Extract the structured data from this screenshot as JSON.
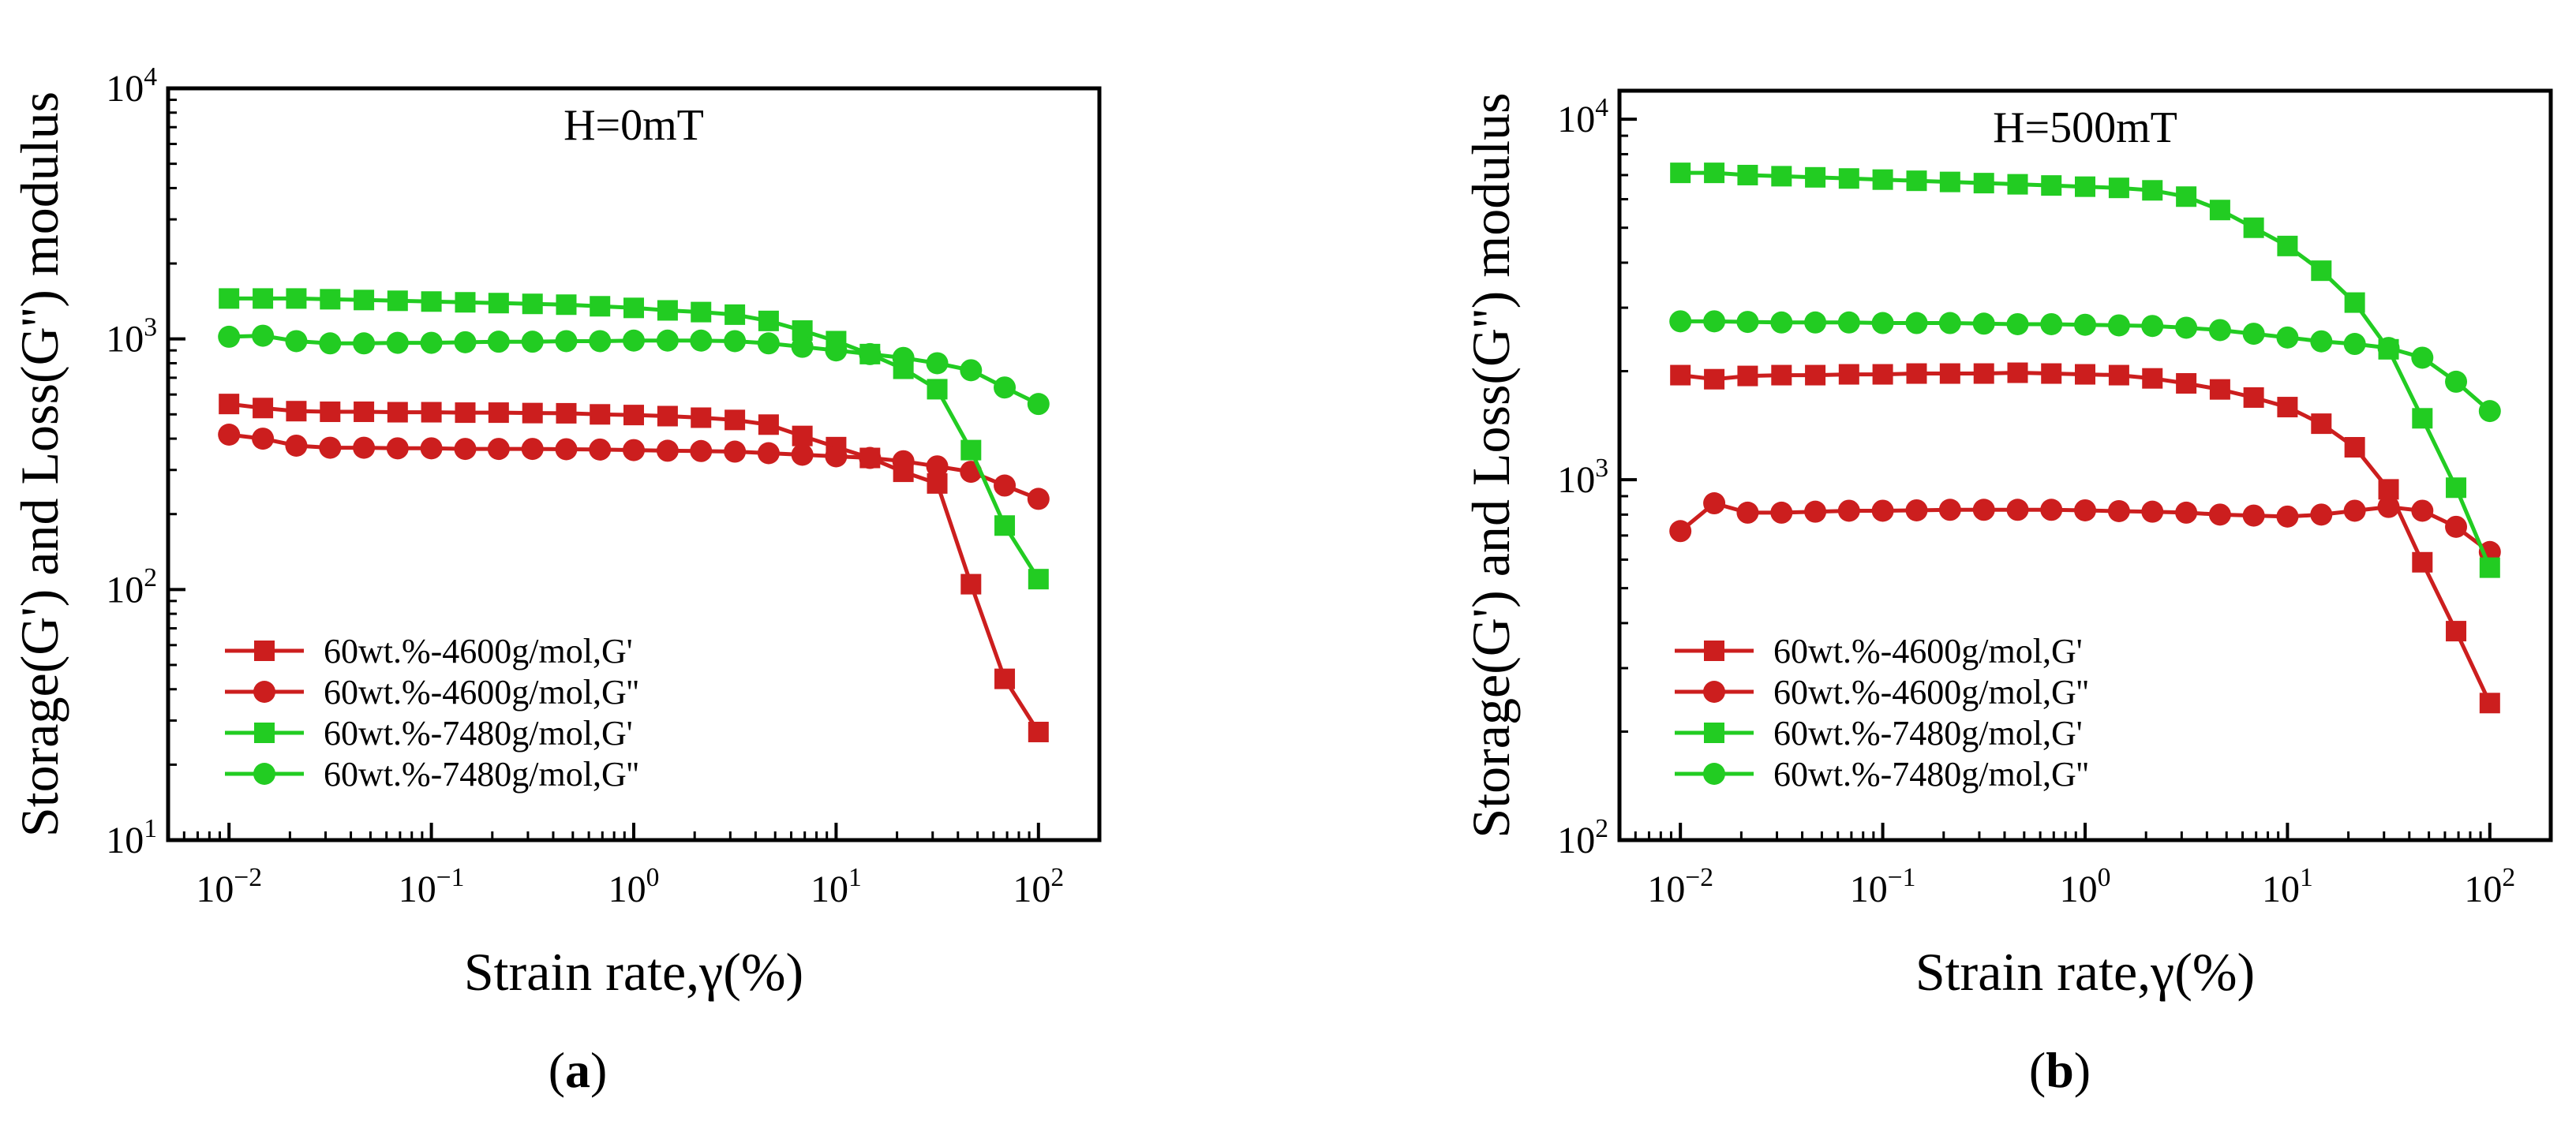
{
  "chart_data": [
    {
      "type": "line",
      "panel_label": "a",
      "annotation": "H=0mT",
      "xlabel": "Strain rate,γ(%)",
      "ylabel": "Storage(G') and Loss(G'') modulus",
      "xscale": "log",
      "yscale": "log",
      "xlim": [
        0.005,
        200
      ],
      "ylim": [
        10,
        10000
      ],
      "x_ticks": [
        0.01,
        0.1,
        1,
        10,
        100
      ],
      "x_tick_labels": [
        {
          "base": "10",
          "exp": "−2"
        },
        {
          "base": "10",
          "exp": "−1"
        },
        {
          "base": "10",
          "exp": "0"
        },
        {
          "base": "10",
          "exp": "1"
        },
        {
          "base": "10",
          "exp": "2"
        }
      ],
      "y_ticks": [
        10,
        100,
        1000,
        10000
      ],
      "y_tick_labels": [
        {
          "base": "10",
          "exp": "1"
        },
        {
          "base": "10",
          "exp": "2"
        },
        {
          "base": "10",
          "exp": "3"
        },
        {
          "base": "10",
          "exp": "4"
        }
      ],
      "legend_position": "bottom-left",
      "x": [
        0.01,
        0.0147,
        0.0215,
        0.0316,
        0.0464,
        0.0681,
        0.1,
        0.147,
        0.215,
        0.316,
        0.464,
        0.681,
        1,
        1.47,
        2.15,
        3.16,
        4.64,
        6.81,
        10,
        14.7,
        21.5,
        31.6,
        46.4,
        68.1,
        100
      ],
      "series": [
        {
          "name": "60wt.%-4600g/mol,G'",
          "color": "#cc1e1e",
          "marker": "square",
          "values": [
            550,
            530,
            515,
            512,
            512,
            510,
            510,
            508,
            508,
            506,
            505,
            500,
            497,
            492,
            485,
            475,
            455,
            410,
            370,
            335,
            295,
            265,
            105,
            44,
            27
          ]
        },
        {
          "name": "60wt.%-4600g/mol,G''",
          "color": "#cc1e1e",
          "marker": "circle",
          "values": [
            415,
            400,
            375,
            368,
            368,
            366,
            366,
            364,
            364,
            364,
            363,
            362,
            360,
            358,
            357,
            355,
            350,
            345,
            340,
            335,
            325,
            310,
            295,
            260,
            230
          ]
        },
        {
          "name": "60wt.%-7480g/mol,G'",
          "color": "#22cc22",
          "marker": "square",
          "values": [
            1450,
            1450,
            1450,
            1440,
            1430,
            1420,
            1410,
            1400,
            1390,
            1380,
            1370,
            1350,
            1330,
            1300,
            1280,
            1250,
            1180,
            1080,
            980,
            870,
            760,
            630,
            360,
            180,
            110
          ]
        },
        {
          "name": "60wt.%-7480g/mol,G''",
          "color": "#22cc22",
          "marker": "circle",
          "values": [
            1020,
            1030,
            980,
            960,
            960,
            965,
            965,
            970,
            975,
            975,
            980,
            980,
            985,
            985,
            985,
            980,
            960,
            930,
            900,
            870,
            840,
            800,
            750,
            640,
            550
          ]
        }
      ]
    },
    {
      "type": "line",
      "panel_label": "b",
      "annotation": "H=500mT",
      "xlabel": "Strain rate,γ(%)",
      "ylabel": "Storage(G') and Loss(G'') modulus",
      "xscale": "log",
      "yscale": "log",
      "xlim": [
        0.005,
        200
      ],
      "ylim": [
        100,
        12000
      ],
      "x_ticks": [
        0.01,
        0.1,
        1,
        10,
        100
      ],
      "x_tick_labels": [
        {
          "base": "10",
          "exp": "−2"
        },
        {
          "base": "10",
          "exp": "−1"
        },
        {
          "base": "10",
          "exp": "0"
        },
        {
          "base": "10",
          "exp": "1"
        },
        {
          "base": "10",
          "exp": "2"
        }
      ],
      "y_ticks": [
        100,
        1000,
        10000
      ],
      "y_tick_labels": [
        {
          "base": "10",
          "exp": "2"
        },
        {
          "base": "10",
          "exp": "3"
        },
        {
          "base": "10",
          "exp": "4"
        }
      ],
      "legend_position": "bottom-left",
      "x": [
        0.01,
        0.0147,
        0.0215,
        0.0316,
        0.0464,
        0.0681,
        0.1,
        0.147,
        0.215,
        0.316,
        0.464,
        0.681,
        1,
        1.47,
        2.15,
        3.16,
        4.64,
        6.81,
        10,
        14.7,
        21.5,
        31.6,
        46.4,
        68.1,
        100
      ],
      "series": [
        {
          "name": "60wt.%-4600g/mol,G'",
          "color": "#cc1e1e",
          "marker": "square",
          "values": [
            1950,
            1900,
            1940,
            1950,
            1950,
            1960,
            1960,
            1970,
            1970,
            1970,
            1980,
            1970,
            1960,
            1950,
            1910,
            1850,
            1780,
            1690,
            1590,
            1430,
            1230,
            940,
            590,
            380,
            240
          ]
        },
        {
          "name": "60wt.%-4600g/mol,G''",
          "color": "#cc1e1e",
          "marker": "circle",
          "values": [
            720,
            860,
            810,
            810,
            815,
            820,
            820,
            822,
            825,
            825,
            825,
            825,
            822,
            818,
            815,
            810,
            800,
            795,
            790,
            800,
            820,
            840,
            820,
            740,
            630
          ]
        },
        {
          "name": "60wt.%-7480g/mol,G'",
          "color": "#22cc22",
          "marker": "square",
          "values": [
            7100,
            7100,
            7000,
            6950,
            6900,
            6850,
            6800,
            6750,
            6700,
            6650,
            6600,
            6550,
            6500,
            6450,
            6350,
            6100,
            5600,
            5000,
            4450,
            3800,
            3100,
            2300,
            1480,
            950,
            570
          ]
        },
        {
          "name": "60wt.%-7480g/mol,G''",
          "color": "#22cc22",
          "marker": "circle",
          "values": [
            2750,
            2750,
            2740,
            2730,
            2730,
            2730,
            2720,
            2720,
            2720,
            2710,
            2700,
            2700,
            2690,
            2680,
            2670,
            2640,
            2600,
            2540,
            2480,
            2420,
            2380,
            2320,
            2180,
            1870,
            1550
          ]
        }
      ]
    }
  ]
}
